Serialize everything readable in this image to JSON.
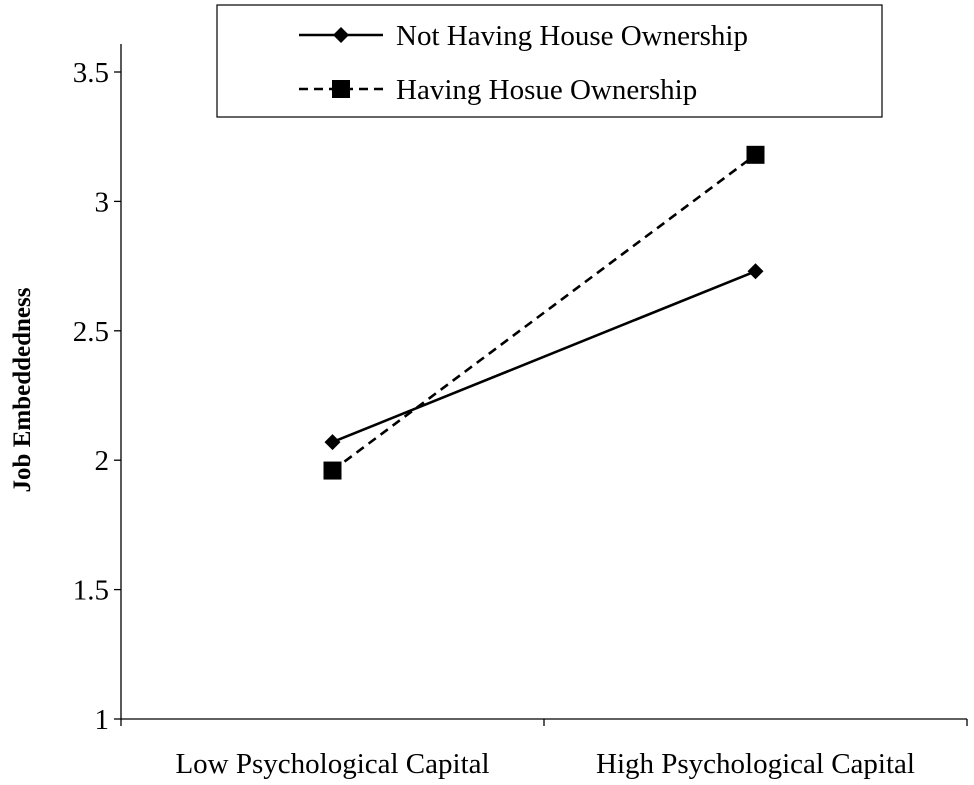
{
  "chart_data": {
    "type": "line",
    "categories": [
      "Low Psychological Capital",
      "High Psychological Capital"
    ],
    "series": [
      {
        "name": "Not Having House Ownership",
        "values": [
          2.07,
          2.73
        ],
        "marker": "diamond",
        "line": "solid",
        "color": "#000000"
      },
      {
        "name": "Having Hosue Ownership",
        "values": [
          1.96,
          3.18
        ],
        "marker": "square",
        "line": "dashed",
        "color": "#000000"
      }
    ],
    "ylabel": "Job Embeddedness",
    "xlabel": "",
    "ylim": [
      1,
      3.5
    ],
    "yticks": [
      1,
      1.5,
      2,
      2.5,
      3,
      3.5
    ],
    "ytick_labels": [
      "1",
      "1.5",
      "2",
      "2.5",
      "3",
      "3.5"
    ],
    "grid": false,
    "legend_position": "top-right"
  }
}
